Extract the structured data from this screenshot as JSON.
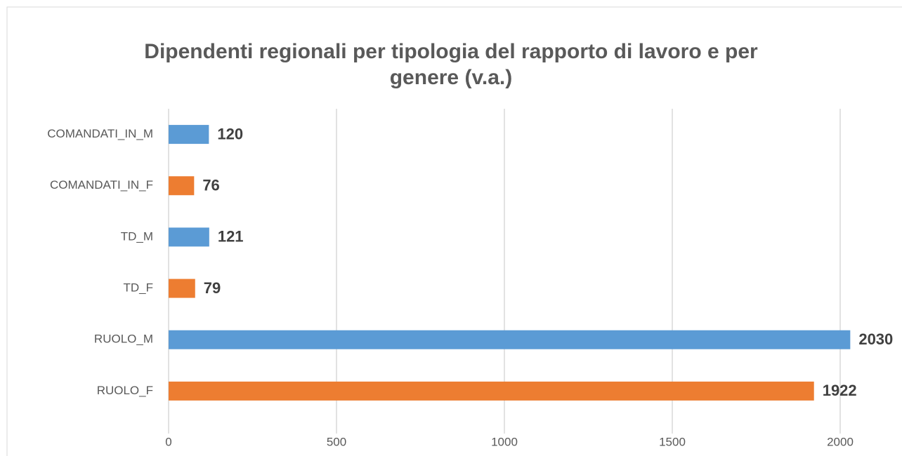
{
  "chart_data": {
    "type": "bar",
    "orientation": "horizontal",
    "title": "Dipendenti regionali per tipologia del rapporto di lavoro e per genere (v.a.)",
    "categories": [
      "RUOLO_F",
      "RUOLO_M",
      "TD_F",
      "TD_M",
      "COMANDATI_IN_F",
      "COMANDATI_IN_M"
    ],
    "values": [
      1922,
      2030,
      79,
      121,
      76,
      120
    ],
    "colors": [
      "#ed7d31",
      "#5b9bd5",
      "#ed7d31",
      "#5b9bd5",
      "#ed7d31",
      "#5b9bd5"
    ],
    "xlim": [
      0,
      2000
    ],
    "xticks": [
      0,
      500,
      1000,
      1500,
      2000
    ],
    "grid": true
  }
}
